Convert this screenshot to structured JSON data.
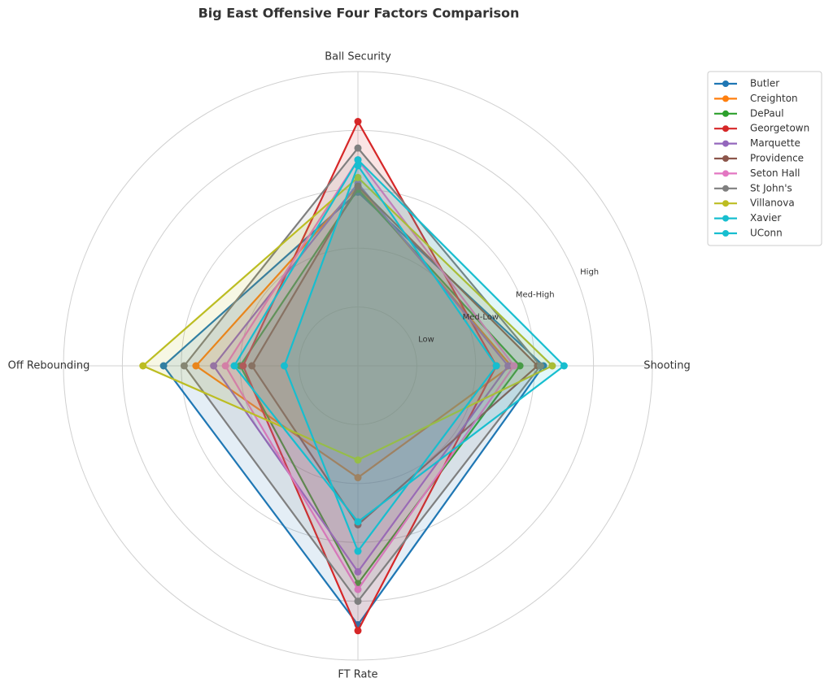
{
  "chart_data": {
    "type": "radar",
    "title": "Big East Offensive Four Factors Comparison",
    "categories": [
      "Ball Security",
      "Shooting",
      "FT Rate",
      "Off Rebounding"
    ],
    "rlim": [
      0,
      1
    ],
    "rticks": [
      {
        "value": 0.2,
        "label": "Low"
      },
      {
        "value": 0.4,
        "label": "Med-Low"
      },
      {
        "value": 0.6,
        "label": "Med-High"
      },
      {
        "value": 0.8,
        "label": "High"
      }
    ],
    "grid": true,
    "legend": "upper right",
    "series": [
      {
        "name": "Butler",
        "color": "#1f77b4",
        "values": [
          0.59,
          0.63,
          0.88,
          0.66
        ]
      },
      {
        "name": "Creighton",
        "color": "#ff7f0e",
        "values": [
          0.61,
          0.52,
          0.38,
          0.55
        ]
      },
      {
        "name": "DePaul",
        "color": "#2ca02c",
        "values": [
          0.6,
          0.55,
          0.74,
          0.4
        ]
      },
      {
        "name": "Georgetown",
        "color": "#d62728",
        "values": [
          0.83,
          0.47,
          0.9,
          0.39
        ]
      },
      {
        "name": "Marquette",
        "color": "#9467bd",
        "values": [
          0.62,
          0.51,
          0.7,
          0.49
        ]
      },
      {
        "name": "Providence",
        "color": "#8c564b",
        "values": [
          0.61,
          0.61,
          0.54,
          0.36
        ]
      },
      {
        "name": "Seton Hall",
        "color": "#e377c2",
        "values": [
          0.7,
          0.53,
          0.76,
          0.45
        ]
      },
      {
        "name": "St John's",
        "color": "#7f7f7f",
        "values": [
          0.74,
          0.62,
          0.8,
          0.59
        ]
      },
      {
        "name": "Villanova",
        "color": "#bcbd22",
        "values": [
          0.64,
          0.66,
          0.32,
          0.73
        ]
      },
      {
        "name": "Xavier",
        "color": "#17becf",
        "values": [
          0.7,
          0.7,
          0.53,
          0.42
        ]
      },
      {
        "name": "UConn",
        "color": "#17becf",
        "values": [
          0.68,
          0.47,
          0.63,
          0.25
        ]
      }
    ]
  }
}
